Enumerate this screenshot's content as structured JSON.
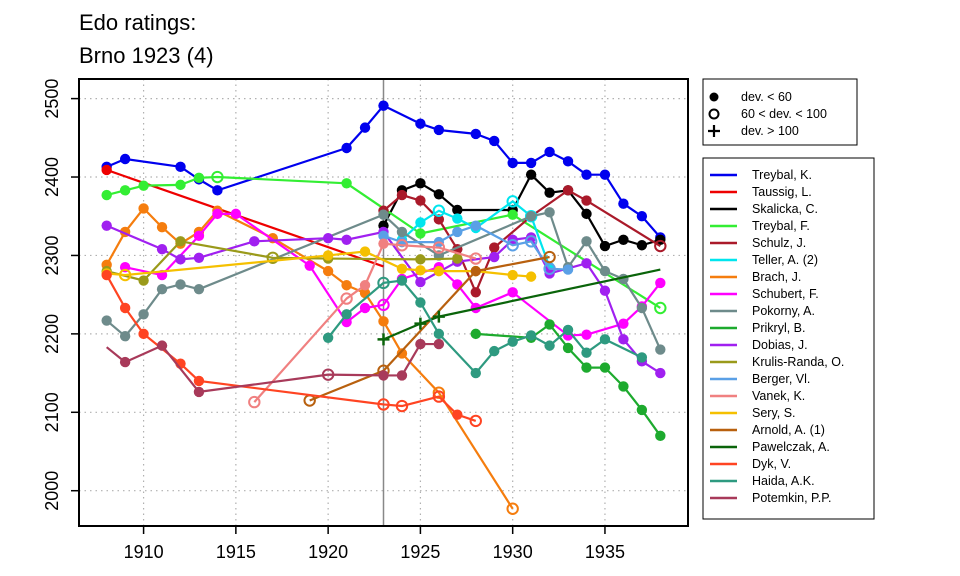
{
  "chart_data": {
    "type": "line",
    "title": [
      "Edo ratings:",
      "Brno 1923 (4)"
    ],
    "xlabel": "",
    "ylabel": "",
    "xlim": [
      1906.5,
      1939.5
    ],
    "ylim": [
      1955,
      2525
    ],
    "x_ticks": [
      1910,
      1915,
      1920,
      1925,
      1930,
      1935
    ],
    "y_ticks": [
      2000,
      2100,
      2200,
      2300,
      2400,
      2500
    ],
    "grid": true,
    "marker_line_x": 1923,
    "marker_legend": [
      {
        "label": "dev. < 60",
        "marker": "filled-circle"
      },
      {
        "label": "60 < dev. < 100",
        "marker": "open-circle"
      },
      {
        "label": "dev. > 100",
        "marker": "plus"
      }
    ],
    "legend_position": "right",
    "series": [
      {
        "name": "Treybal, K.",
        "color": "#0000ee",
        "points": [
          [
            1908,
            2413,
            "f"
          ],
          [
            1909,
            2423,
            "f"
          ],
          [
            1912,
            2413,
            "f"
          ],
          [
            1913,
            2397,
            "f"
          ],
          [
            1914,
            2383,
            "f"
          ],
          [
            1921,
            2437,
            "f"
          ],
          [
            1922,
            2463,
            "f"
          ],
          [
            1923,
            2491,
            "f"
          ],
          [
            1925,
            2468,
            "f"
          ],
          [
            1926,
            2460,
            "f"
          ],
          [
            1928,
            2455,
            "f"
          ],
          [
            1929,
            2446,
            "f"
          ],
          [
            1930,
            2418,
            "f"
          ],
          [
            1931,
            2418,
            "f"
          ],
          [
            1932,
            2432,
            "f"
          ],
          [
            1933,
            2420,
            "f"
          ],
          [
            1934,
            2403,
            "f"
          ],
          [
            1935,
            2403,
            "f"
          ],
          [
            1936,
            2366,
            "f"
          ],
          [
            1937,
            2350,
            "f"
          ],
          [
            1938,
            2323,
            "f"
          ]
        ]
      },
      {
        "name": "Taussig, L.",
        "color": "#ee0000",
        "points": [
          [
            1908,
            2409,
            "f"
          ],
          [
            1923,
            2286,
            "n"
          ]
        ]
      },
      {
        "name": "Skalicka, C.",
        "color": "#000000",
        "points": [
          [
            1923,
            2338,
            "f"
          ],
          [
            1924,
            2383,
            "f"
          ],
          [
            1925,
            2392,
            "f"
          ],
          [
            1926,
            2378,
            "f"
          ],
          [
            1927,
            2358,
            "f"
          ],
          [
            1930,
            2358,
            "f"
          ],
          [
            1931,
            2403,
            "f"
          ],
          [
            1932,
            2380,
            "f"
          ],
          [
            1933,
            2383,
            "f"
          ],
          [
            1934,
            2353,
            "f"
          ],
          [
            1935,
            2312,
            "f"
          ],
          [
            1936,
            2320,
            "f"
          ],
          [
            1937,
            2313,
            "f"
          ],
          [
            1938,
            2320,
            "f"
          ]
        ]
      },
      {
        "name": "Treybal, F.",
        "color": "#33ee33",
        "points": [
          [
            1908,
            2377,
            "f"
          ],
          [
            1909,
            2383,
            "f"
          ],
          [
            1910,
            2389,
            "f"
          ],
          [
            1912,
            2390,
            "f"
          ],
          [
            1913,
            2399,
            "f"
          ],
          [
            1914,
            2400,
            "o"
          ],
          [
            1921,
            2392,
            "f"
          ],
          [
            1925,
            2328,
            "f"
          ],
          [
            1930,
            2352,
            "f"
          ],
          [
            1938,
            2233,
            "o"
          ]
        ]
      },
      {
        "name": "Schulz, J.",
        "color": "#aa1a2a",
        "points": [
          [
            1923,
            2357,
            "f"
          ],
          [
            1924,
            2377,
            "f"
          ],
          [
            1925,
            2370,
            "f"
          ],
          [
            1926,
            2346,
            "f"
          ],
          [
            1927,
            2308,
            "f"
          ],
          [
            1928,
            2253,
            "f"
          ],
          [
            1929,
            2310,
            "f"
          ],
          [
            1931,
            2350,
            "f"
          ],
          [
            1933,
            2383,
            "f"
          ],
          [
            1934,
            2370,
            "f"
          ],
          [
            1938,
            2312,
            "o"
          ]
        ]
      },
      {
        "name": "Teller, A. (2)",
        "color": "#00e5ee",
        "points": [
          [
            1924,
            2320,
            "f"
          ],
          [
            1925,
            2342,
            "f"
          ],
          [
            1926,
            2357,
            "o"
          ],
          [
            1927,
            2347,
            "f"
          ],
          [
            1928,
            2335,
            "f"
          ],
          [
            1930,
            2369,
            "o"
          ],
          [
            1931,
            2350,
            "o"
          ],
          [
            1932,
            2285,
            "f"
          ]
        ]
      },
      {
        "name": "Brach, J.",
        "color": "#f57d0e",
        "points": [
          [
            1908,
            2288,
            "f"
          ],
          [
            1909,
            2330,
            "f"
          ],
          [
            1910,
            2360,
            "f"
          ],
          [
            1911,
            2336,
            "f"
          ],
          [
            1912,
            2315,
            "f"
          ],
          [
            1913,
            2330,
            "f"
          ],
          [
            1914,
            2357,
            "f"
          ],
          [
            1917,
            2322,
            "f"
          ],
          [
            1920,
            2280,
            "f"
          ],
          [
            1921,
            2262,
            "f"
          ],
          [
            1922,
            2252,
            "f"
          ],
          [
            1923,
            2216,
            "f"
          ],
          [
            1924,
            2175,
            "f"
          ],
          [
            1926,
            2125,
            "o"
          ],
          [
            1930,
            1977,
            "o"
          ]
        ]
      },
      {
        "name": "Schubert, F.",
        "color": "#ff00ff",
        "points": [
          [
            1909,
            2285,
            "f"
          ],
          [
            1911,
            2275,
            "f"
          ],
          [
            1913,
            2325,
            "f"
          ],
          [
            1914,
            2353,
            "f"
          ],
          [
            1915,
            2353,
            "f"
          ],
          [
            1919,
            2287,
            "f"
          ],
          [
            1921,
            2215,
            "f"
          ],
          [
            1922,
            2233,
            "f"
          ],
          [
            1923,
            2237,
            "o"
          ],
          [
            1924,
            2270,
            "f"
          ],
          [
            1926,
            2285,
            "f"
          ],
          [
            1927,
            2263,
            "f"
          ],
          [
            1928,
            2233,
            "f"
          ],
          [
            1930,
            2253,
            "f"
          ],
          [
            1933,
            2198,
            "f"
          ],
          [
            1934,
            2199,
            "f"
          ],
          [
            1936,
            2213,
            "f"
          ],
          [
            1937,
            2235,
            "f"
          ],
          [
            1938,
            2265,
            "f"
          ]
        ]
      },
      {
        "name": "Pokorny, A.",
        "color": "#6e8b8b",
        "points": [
          [
            1908,
            2217,
            "f"
          ],
          [
            1909,
            2197,
            "f"
          ],
          [
            1910,
            2225,
            "f"
          ],
          [
            1911,
            2257,
            "f"
          ],
          [
            1912,
            2263,
            "f"
          ],
          [
            1913,
            2257,
            "f"
          ],
          [
            1923,
            2352,
            "f"
          ],
          [
            1924,
            2330,
            "f"
          ],
          [
            1926,
            2300,
            "f"
          ],
          [
            1931,
            2350,
            "f"
          ],
          [
            1932,
            2355,
            "f"
          ],
          [
            1933,
            2285,
            "f"
          ],
          [
            1934,
            2318,
            "f"
          ],
          [
            1935,
            2280,
            "f"
          ],
          [
            1936,
            2270,
            "f"
          ],
          [
            1937,
            2233,
            "f"
          ],
          [
            1938,
            2180,
            "f"
          ]
        ]
      },
      {
        "name": "Prikryl, B.",
        "color": "#1daa2e",
        "points": [
          [
            1928,
            2200,
            "f"
          ],
          [
            1931,
            2195,
            "f"
          ],
          [
            1932,
            2212,
            "f"
          ],
          [
            1933,
            2182,
            "f"
          ],
          [
            1934,
            2157,
            "f"
          ],
          [
            1935,
            2157,
            "f"
          ],
          [
            1936,
            2133,
            "f"
          ],
          [
            1937,
            2103,
            "f"
          ],
          [
            1938,
            2070,
            "f"
          ]
        ]
      },
      {
        "name": "Dobias, J.",
        "color": "#a020f0",
        "points": [
          [
            1908,
            2338,
            "f"
          ],
          [
            1911,
            2308,
            "f"
          ],
          [
            1912,
            2295,
            "f"
          ],
          [
            1913,
            2297,
            "f"
          ],
          [
            1916,
            2318,
            "f"
          ],
          [
            1920,
            2322,
            "f"
          ],
          [
            1921,
            2320,
            "f"
          ],
          [
            1923,
            2330,
            "f"
          ],
          [
            1925,
            2266,
            "f"
          ],
          [
            1927,
            2292,
            "f"
          ],
          [
            1929,
            2298,
            "f"
          ],
          [
            1930,
            2320,
            "f"
          ],
          [
            1931,
            2323,
            "f"
          ],
          [
            1932,
            2277,
            "f"
          ],
          [
            1934,
            2290,
            "f"
          ],
          [
            1935,
            2255,
            "f"
          ],
          [
            1936,
            2193,
            "f"
          ],
          [
            1937,
            2165,
            "f"
          ],
          [
            1938,
            2150,
            "f"
          ]
        ]
      },
      {
        "name": "Krulis-Randa, O.",
        "color": "#9a9a1a",
        "points": [
          [
            1908,
            2280,
            "f"
          ],
          [
            1910,
            2268,
            "f"
          ],
          [
            1912,
            2318,
            "f"
          ],
          [
            1917,
            2297,
            "o"
          ],
          [
            1920,
            2296,
            "f"
          ],
          [
            1925,
            2295,
            "f"
          ],
          [
            1927,
            2296,
            "f"
          ]
        ]
      },
      {
        "name": "Berger, Vl.",
        "color": "#5aa0e6",
        "points": [
          [
            1923,
            2325,
            "f"
          ],
          [
            1924,
            2317,
            "f"
          ],
          [
            1926,
            2317,
            "f"
          ],
          [
            1927,
            2330,
            "f"
          ],
          [
            1928,
            2338,
            "f"
          ],
          [
            1930,
            2313,
            "o"
          ],
          [
            1931,
            2318,
            "o"
          ],
          [
            1932,
            2283,
            "o"
          ],
          [
            1933,
            2282,
            "f"
          ]
        ]
      },
      {
        "name": "Vanek, K.",
        "color": "#f08080",
        "points": [
          [
            1916,
            2113,
            "o"
          ],
          [
            1921,
            2245,
            "o"
          ],
          [
            1922,
            2262,
            "f"
          ],
          [
            1923,
            2315,
            "f"
          ],
          [
            1924,
            2313,
            "o"
          ],
          [
            1926,
            2310,
            "o"
          ],
          [
            1928,
            2296,
            "o"
          ]
        ]
      },
      {
        "name": "Sery, S.",
        "color": "#f5c000",
        "points": [
          [
            1908,
            2277,
            "f"
          ],
          [
            1909,
            2275,
            "o"
          ],
          [
            1920,
            2300,
            "f"
          ],
          [
            1922,
            2305,
            "f"
          ],
          [
            1924,
            2283,
            "f"
          ],
          [
            1925,
            2281,
            "f"
          ],
          [
            1926,
            2280,
            "f"
          ],
          [
            1928,
            2280,
            "f"
          ],
          [
            1930,
            2275,
            "f"
          ],
          [
            1931,
            2273,
            "f"
          ]
        ]
      },
      {
        "name": "Arnold, A. (1)",
        "color": "#b8600e",
        "points": [
          [
            1919,
            2115,
            "o"
          ],
          [
            1923,
            2153,
            "o"
          ],
          [
            1928,
            2280,
            "f"
          ],
          [
            1932,
            2298,
            "o"
          ]
        ]
      },
      {
        "name": "Pawelczak, A.",
        "color": "#0a640a",
        "points": [
          [
            1923,
            2193,
            "p"
          ],
          [
            1925,
            2213,
            "p"
          ],
          [
            1926,
            2222,
            "p"
          ],
          [
            1938,
            2282,
            "n"
          ]
        ]
      },
      {
        "name": "Dyk, V.",
        "color": "#ff4422",
        "points": [
          [
            1908,
            2275,
            "f"
          ],
          [
            1909,
            2233,
            "f"
          ],
          [
            1910,
            2200,
            "f"
          ],
          [
            1912,
            2162,
            "f"
          ],
          [
            1913,
            2140,
            "f"
          ],
          [
            1923,
            2110,
            "o"
          ],
          [
            1924,
            2108,
            "o"
          ],
          [
            1926,
            2120,
            "o"
          ],
          [
            1927,
            2097,
            "f"
          ],
          [
            1928,
            2089,
            "o"
          ]
        ]
      },
      {
        "name": "Haida, A.K.",
        "color": "#2e9a80",
        "points": [
          [
            1920,
            2195,
            "f"
          ],
          [
            1921,
            2225,
            "f"
          ],
          [
            1923,
            2265,
            "o"
          ],
          [
            1924,
            2268,
            "f"
          ],
          [
            1925,
            2240,
            "f"
          ],
          [
            1926,
            2200,
            "f"
          ],
          [
            1928,
            2150,
            "f"
          ],
          [
            1929,
            2178,
            "f"
          ],
          [
            1930,
            2190,
            "f"
          ],
          [
            1931,
            2198,
            "f"
          ],
          [
            1932,
            2185,
            "f"
          ],
          [
            1933,
            2205,
            "f"
          ],
          [
            1934,
            2176,
            "f"
          ],
          [
            1935,
            2193,
            "f"
          ],
          [
            1937,
            2170,
            "f"
          ]
        ]
      },
      {
        "name": "Potemkin, P.P.",
        "color": "#a83a5a",
        "points": [
          [
            1908,
            2183,
            "n"
          ],
          [
            1909,
            2164,
            "f"
          ],
          [
            1911,
            2185,
            "f"
          ],
          [
            1913,
            2126,
            "f"
          ],
          [
            1920,
            2148,
            "o"
          ],
          [
            1923,
            2147,
            "f"
          ],
          [
            1924,
            2147,
            "f"
          ],
          [
            1925,
            2187,
            "f"
          ],
          [
            1926,
            2187,
            "f"
          ]
        ]
      }
    ]
  }
}
